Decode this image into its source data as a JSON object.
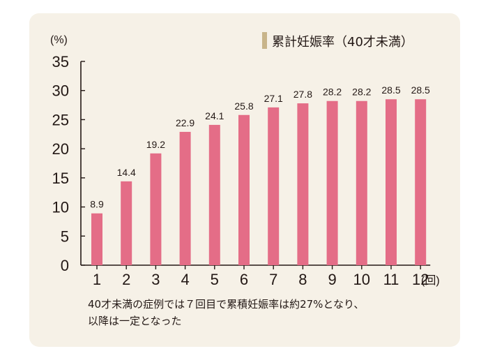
{
  "chart_data": {
    "type": "bar",
    "unit_label": "(%)",
    "x_unit_label": "(回)",
    "legend": {
      "label": "累計妊娠率（40才未満）",
      "placement": "top-right",
      "swatch_color": "#c8b48a"
    },
    "categories": [
      "1",
      "2",
      "3",
      "4",
      "5",
      "6",
      "7",
      "8",
      "9",
      "10",
      "11",
      "12"
    ],
    "series": [
      {
        "values": [
          8.9,
          14.4,
          19.2,
          22.9,
          24.1,
          25.8,
          27.1,
          27.8,
          28.2,
          28.2,
          28.5,
          28.5
        ]
      }
    ],
    "data_labels": [
      "8.9",
      "14.4",
      "19.2",
      "22.9",
      "24.1",
      "25.8",
      "27.1",
      "27.8",
      "28.2",
      "28.2",
      "28.5",
      "28.5"
    ],
    "yticks": [
      "0",
      "5",
      "10",
      "15",
      "20",
      "25",
      "30",
      "35"
    ],
    "ylim": [
      0,
      35
    ],
    "grid": false,
    "bar_color": "#e46d87"
  },
  "caption": {
    "line1": "40才未満の症例では７回目で累積妊娠率は約27%となり、",
    "line2": "以降は一定となった"
  }
}
